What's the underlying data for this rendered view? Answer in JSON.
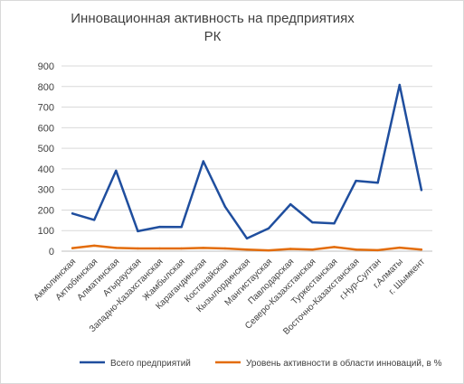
{
  "chart_data": {
    "type": "line",
    "title_line1": "Инновационная активность на предприятиях",
    "title_line2": "РК",
    "categories": [
      "Акмолинская",
      "Актюбинская",
      "Алматинская",
      "Атырауская",
      "Западно-Казахстанская",
      "Жамбылская",
      "Карагандинская",
      "Костанайская",
      "Кызылординская",
      "Мангистауская",
      "Павлодарская",
      "Северо-Казахстанская",
      "Туркестанская",
      "Восточно-Казахстанская",
      "г.Нур-Султан",
      "г.Алматы",
      "г. Шымкент"
    ],
    "series": [
      {
        "name": "Всего предприятий",
        "color": "#1f4e9e",
        "values": [
          183,
          152,
          391,
          97,
          118,
          117,
          437,
          216,
          62,
          111,
          228,
          140,
          135,
          342,
          333,
          808,
          297
        ]
      },
      {
        "name": "Уровень активности в области инноваций, в %",
        "color": "#e36c0a",
        "values": [
          15,
          27,
          16,
          13,
          13,
          13,
          16,
          13,
          8,
          4,
          11,
          8,
          20,
          8,
          5,
          17,
          8
        ]
      }
    ],
    "yticks": [
      "0",
      "100",
      "200",
      "300",
      "400",
      "500",
      "600",
      "700",
      "800",
      "900"
    ],
    "ylim": [
      0,
      900
    ],
    "grid": true,
    "legend_position": "bottom"
  }
}
